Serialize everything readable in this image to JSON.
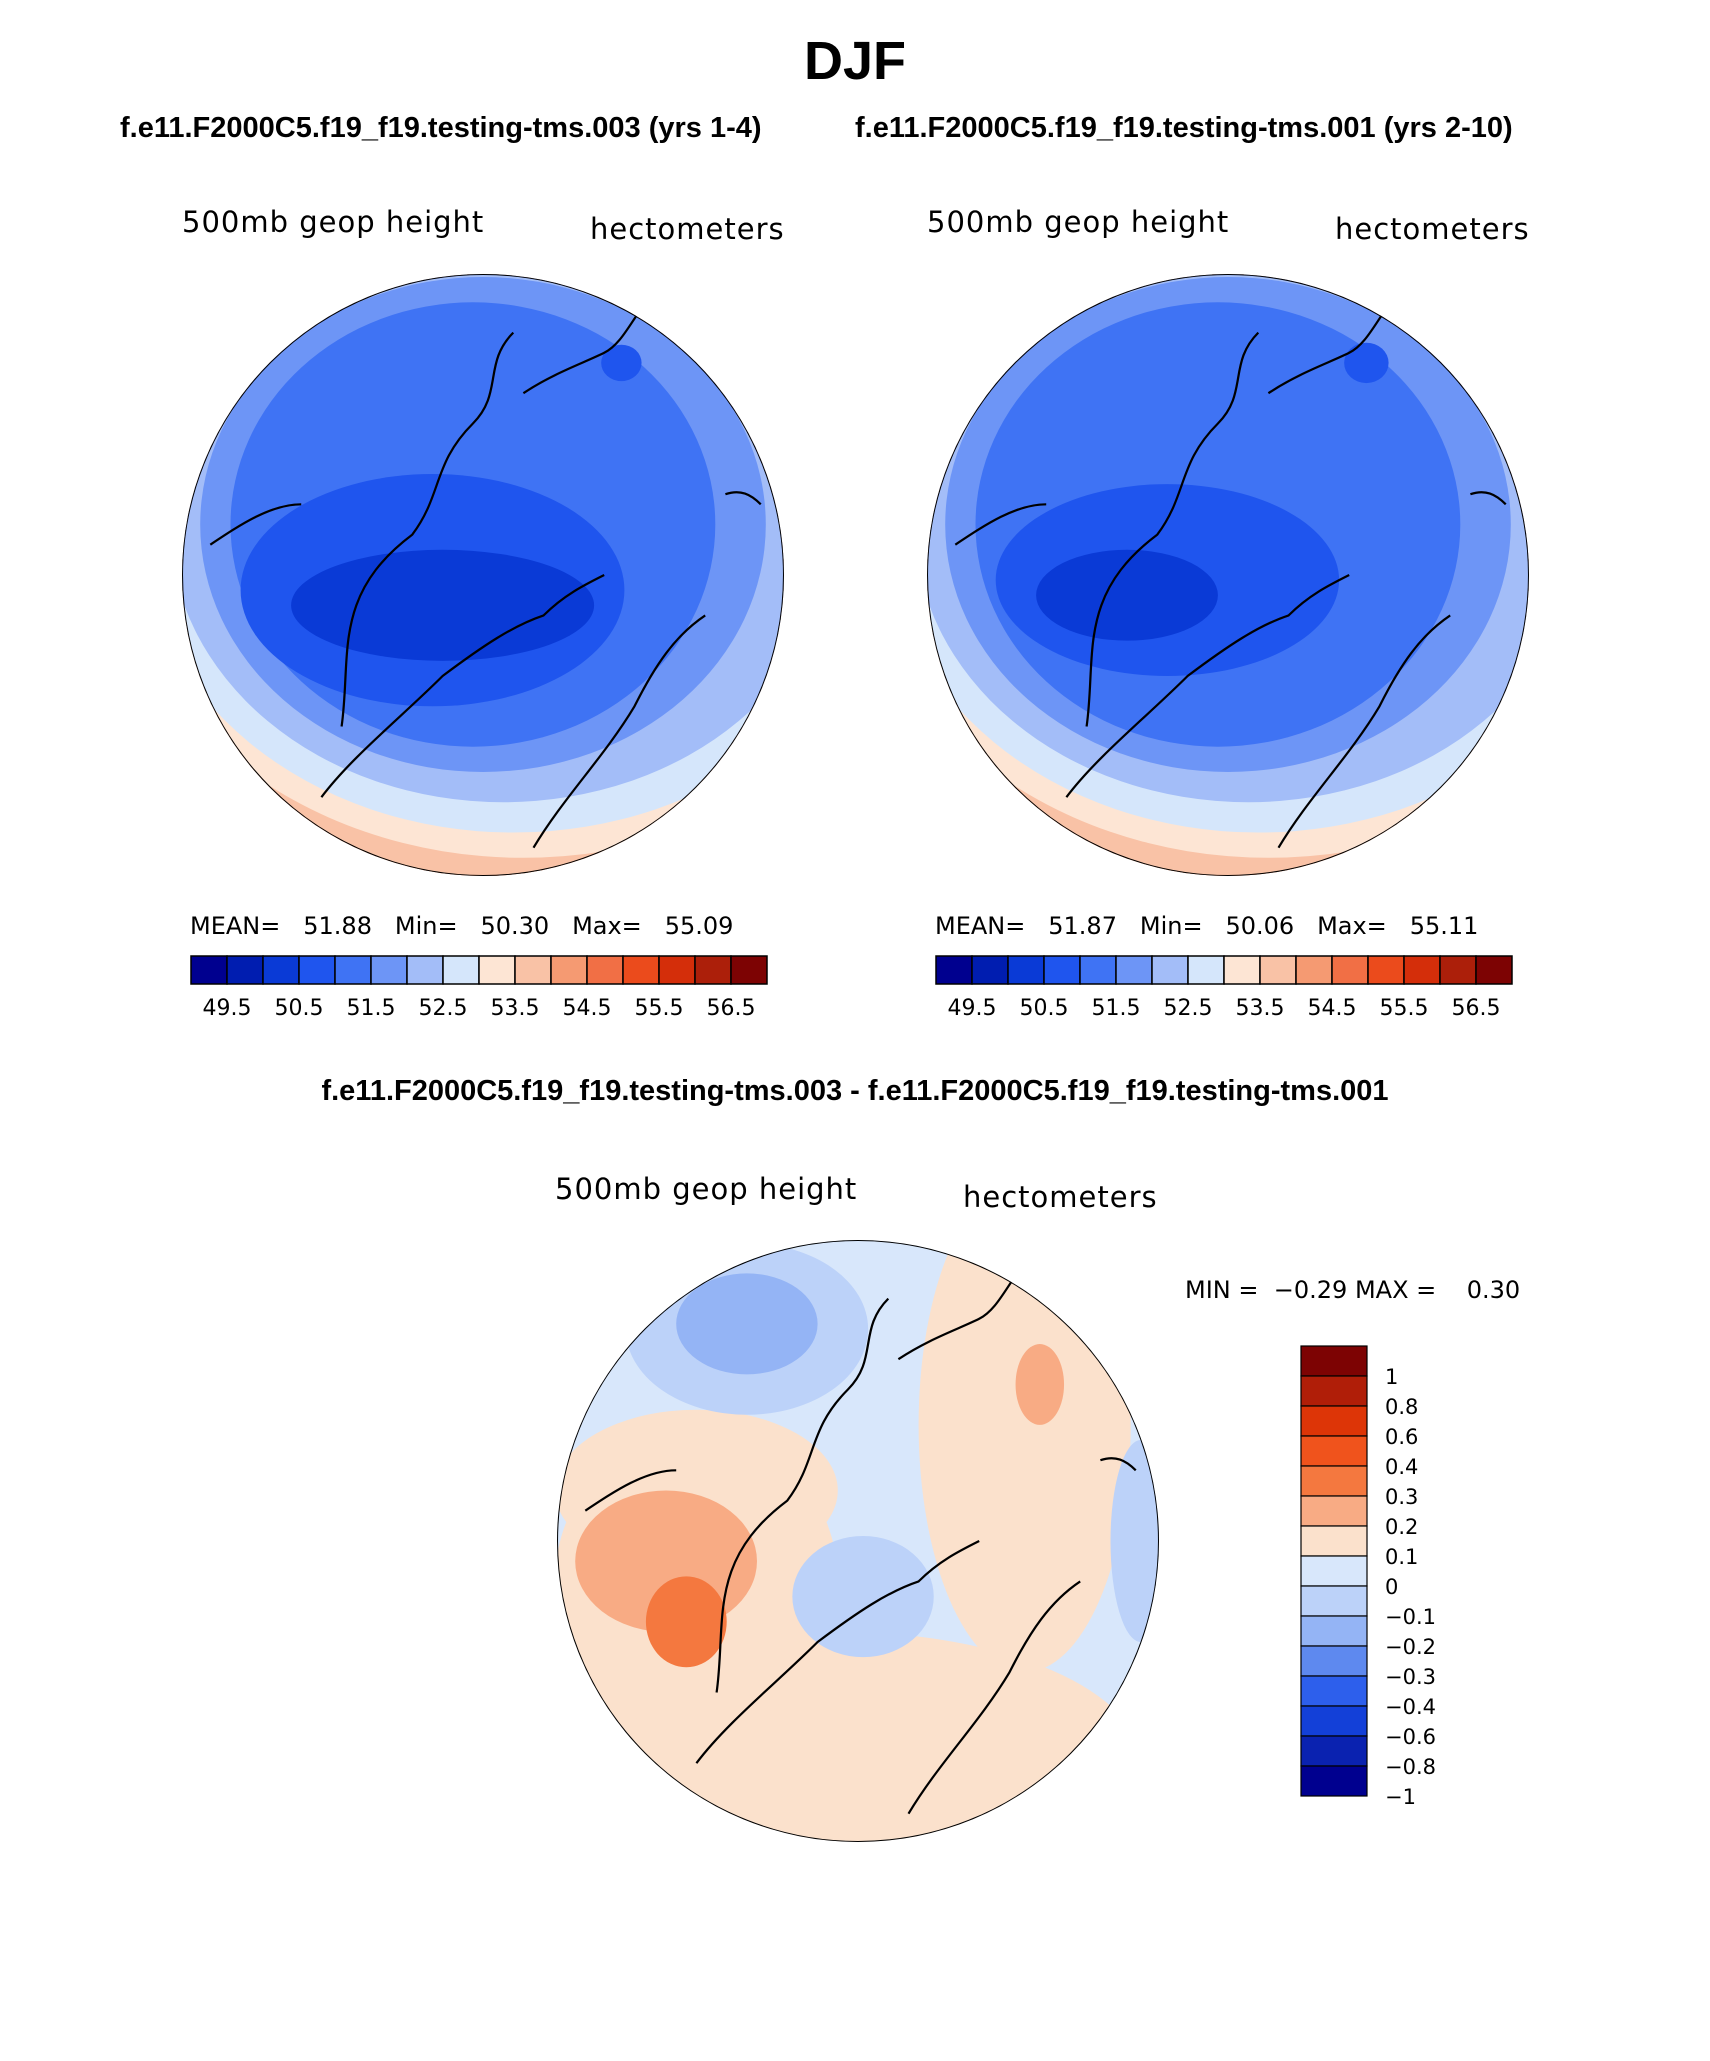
{
  "figure": {
    "title": "DJF",
    "left_run_title": "f.e11.F2000C5.f19_f19.testing-tms.003 (yrs 1-4)",
    "right_run_title": "f.e11.F2000C5.f19_f19.testing-tms.001 (yrs 2-10)",
    "difference_title": "f.e11.F2000C5.f19_f19.testing-tms.003 - f.e11.F2000C5.f19_f19.testing-tms.001"
  },
  "panels": [
    {
      "id": "case1",
      "variable": "500mb geop height",
      "units": "hectometers",
      "mean_label": "MEAN=",
      "mean": "51.88",
      "min_label": "Min=",
      "min": "50.30",
      "max_label": "Max=",
      "max": "55.09"
    },
    {
      "id": "case2",
      "variable": "500mb geop height",
      "units": "hectometers",
      "mean_label": "MEAN=",
      "mean": "51.87",
      "min_label": "Min=",
      "min": "50.06",
      "max_label": "Max=",
      "max": "55.11"
    },
    {
      "id": "difference",
      "variable": "500mb geop height",
      "units": "hectometers",
      "min_label": "MIN =",
      "min": "−0.29",
      "max_label": "MAX =",
      "max": "0.30"
    }
  ],
  "main_colorbar": {
    "colors": [
      "#00008f",
      "#001db0",
      "#0a3ad6",
      "#1f55ee",
      "#3f73f4",
      "#6d95f6",
      "#a3bdf8",
      "#d5e6fb",
      "#fde5d4",
      "#f9c2a6",
      "#f59a72",
      "#f16f45",
      "#eb4b1c",
      "#d42e0a",
      "#ac1f0a",
      "#7d0303"
    ],
    "tick_labels": [
      "49.5",
      "50.5",
      "51.5",
      "52.5",
      "53.5",
      "54.5",
      "55.5",
      "56.5"
    ]
  },
  "diff_colorbar": {
    "colors_top_to_bottom": [
      "#7d0303",
      "#b01e08",
      "#dd3507",
      "#f0531c",
      "#f4783f",
      "#f8ab84",
      "#fbe1cc",
      "#d8e7fb",
      "#bcd2f9",
      "#94b4f5",
      "#5e89ef",
      "#2d5fec",
      "#1340d8",
      "#0a22b0",
      "#00008f"
    ],
    "tick_labels": [
      "1",
      "0.8",
      "0.6",
      "0.4",
      "0.3",
      "0.2",
      "0.1",
      "0",
      "−0.1",
      "−0.2",
      "−0.3",
      "−0.4",
      "−0.6",
      "−0.8",
      "−1"
    ]
  },
  "palette": {
    "field_colors_case1": [
      "#d5e6fb",
      "#a3bdf8",
      "#6d95f6",
      "#3f73f4",
      "#1f55ee",
      "#fde5d4",
      "#f9c2a6",
      "#f59a72",
      "#f16f45"
    ],
    "diff_colors": [
      "#d8e7fb",
      "#bcd2f9",
      "#94b4f5",
      "#fbe1cc",
      "#f8ab84",
      "#f4783f"
    ],
    "coastline": "#000000"
  }
}
